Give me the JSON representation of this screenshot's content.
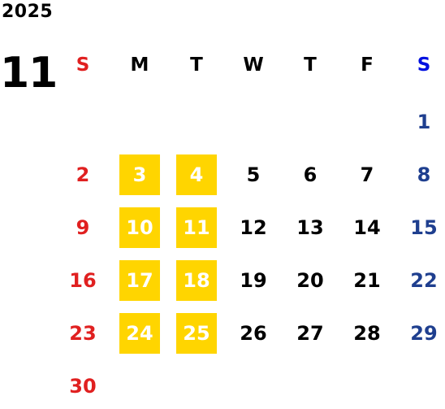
{
  "year": "2025",
  "month": "11",
  "weekday_headers": [
    "S",
    "M",
    "T",
    "W",
    "T",
    "F",
    "S"
  ],
  "weeks": [
    [
      {
        "day": "",
        "highlighted": false
      },
      {
        "day": "",
        "highlighted": false
      },
      {
        "day": "",
        "highlighted": false
      },
      {
        "day": "",
        "highlighted": false
      },
      {
        "day": "",
        "highlighted": false
      },
      {
        "day": "",
        "highlighted": false
      },
      {
        "day": "1",
        "highlighted": false
      }
    ],
    [
      {
        "day": "2",
        "highlighted": false
      },
      {
        "day": "3",
        "highlighted": true
      },
      {
        "day": "4",
        "highlighted": true
      },
      {
        "day": "5",
        "highlighted": false
      },
      {
        "day": "6",
        "highlighted": false
      },
      {
        "day": "7",
        "highlighted": false
      },
      {
        "day": "8",
        "highlighted": false
      }
    ],
    [
      {
        "day": "9",
        "highlighted": false
      },
      {
        "day": "10",
        "highlighted": true
      },
      {
        "day": "11",
        "highlighted": true
      },
      {
        "day": "12",
        "highlighted": false
      },
      {
        "day": "13",
        "highlighted": false
      },
      {
        "day": "14",
        "highlighted": false
      },
      {
        "day": "15",
        "highlighted": false
      }
    ],
    [
      {
        "day": "16",
        "highlighted": false
      },
      {
        "day": "17",
        "highlighted": true
      },
      {
        "day": "18",
        "highlighted": true
      },
      {
        "day": "19",
        "highlighted": false
      },
      {
        "day": "20",
        "highlighted": false
      },
      {
        "day": "21",
        "highlighted": false
      },
      {
        "day": "22",
        "highlighted": false
      }
    ],
    [
      {
        "day": "23",
        "highlighted": false
      },
      {
        "day": "24",
        "highlighted": true
      },
      {
        "day": "25",
        "highlighted": true
      },
      {
        "day": "26",
        "highlighted": false
      },
      {
        "day": "27",
        "highlighted": false
      },
      {
        "day": "28",
        "highlighted": false
      },
      {
        "day": "29",
        "highlighted": false
      }
    ],
    [
      {
        "day": "30",
        "highlighted": false
      },
      {
        "day": "",
        "highlighted": false
      },
      {
        "day": "",
        "highlighted": false
      },
      {
        "day": "",
        "highlighted": false
      },
      {
        "day": "",
        "highlighted": false
      },
      {
        "day": "",
        "highlighted": false
      },
      {
        "day": "",
        "highlighted": false
      }
    ]
  ],
  "colors": {
    "sunday": "#e02020",
    "saturday_header": "#0010e0",
    "saturday": "#1f3f8f",
    "highlight_bg": "#ffd500",
    "highlight_text": "#ffffff",
    "text": "#000000"
  }
}
